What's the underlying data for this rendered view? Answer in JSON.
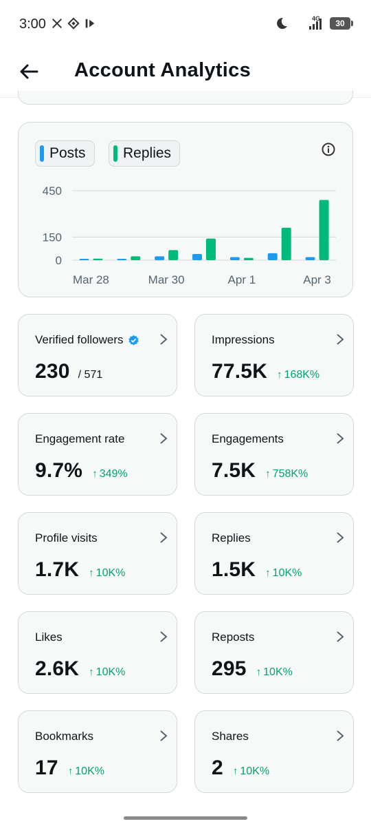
{
  "status_bar": {
    "time": "3:00",
    "network": "4G",
    "battery": "30"
  },
  "header": {
    "title": "Account Analytics"
  },
  "chart": {
    "legend": [
      {
        "label": "Posts",
        "color": "#1d9bf0"
      },
      {
        "label": "Replies",
        "color": "#00ba7c"
      }
    ],
    "y_ticks": [
      "450",
      "150",
      "0"
    ],
    "x_labels": [
      "Mar 28",
      "Mar 30",
      "Apr 1",
      "Apr 3"
    ]
  },
  "chart_data": {
    "type": "bar",
    "categories": [
      "Mar 28",
      "Mar 29",
      "Mar 30",
      "Mar 31",
      "Apr 1",
      "Apr 2",
      "Apr 3"
    ],
    "series": [
      {
        "name": "Posts",
        "color": "#1d9bf0",
        "values": [
          1,
          1,
          25,
          40,
          20,
          45,
          20
        ]
      },
      {
        "name": "Replies",
        "color": "#00ba7c",
        "values": [
          10,
          25,
          65,
          140,
          15,
          210,
          390
        ]
      }
    ],
    "ylim": [
      0,
      450
    ],
    "yticks": [
      0,
      150,
      450
    ],
    "grid": true
  },
  "metrics": [
    {
      "label": "Verified followers",
      "value": "230",
      "sub": "/ 571",
      "change": "",
      "verified": true
    },
    {
      "label": "Impressions",
      "value": "77.5K",
      "sub": "",
      "change": "168K%"
    },
    {
      "label": "Engagement rate",
      "value": "9.7%",
      "sub": "",
      "change": "349%"
    },
    {
      "label": "Engagements",
      "value": "7.5K",
      "sub": "",
      "change": "758K%"
    },
    {
      "label": "Profile visits",
      "value": "1.7K",
      "sub": "",
      "change": "10K%"
    },
    {
      "label": "Replies",
      "value": "1.5K",
      "sub": "",
      "change": "10K%"
    },
    {
      "label": "Likes",
      "value": "2.6K",
      "sub": "",
      "change": "10K%"
    },
    {
      "label": "Reposts",
      "value": "295",
      "sub": "",
      "change": "10K%"
    },
    {
      "label": "Bookmarks",
      "value": "17",
      "sub": "",
      "change": "10K%"
    },
    {
      "label": "Shares",
      "value": "2",
      "sub": "",
      "change": "10K%"
    }
  ],
  "colors": {
    "accent_blue": "#1d9bf0",
    "accent_green": "#00ba7c",
    "positive_text": "#00a36c"
  }
}
